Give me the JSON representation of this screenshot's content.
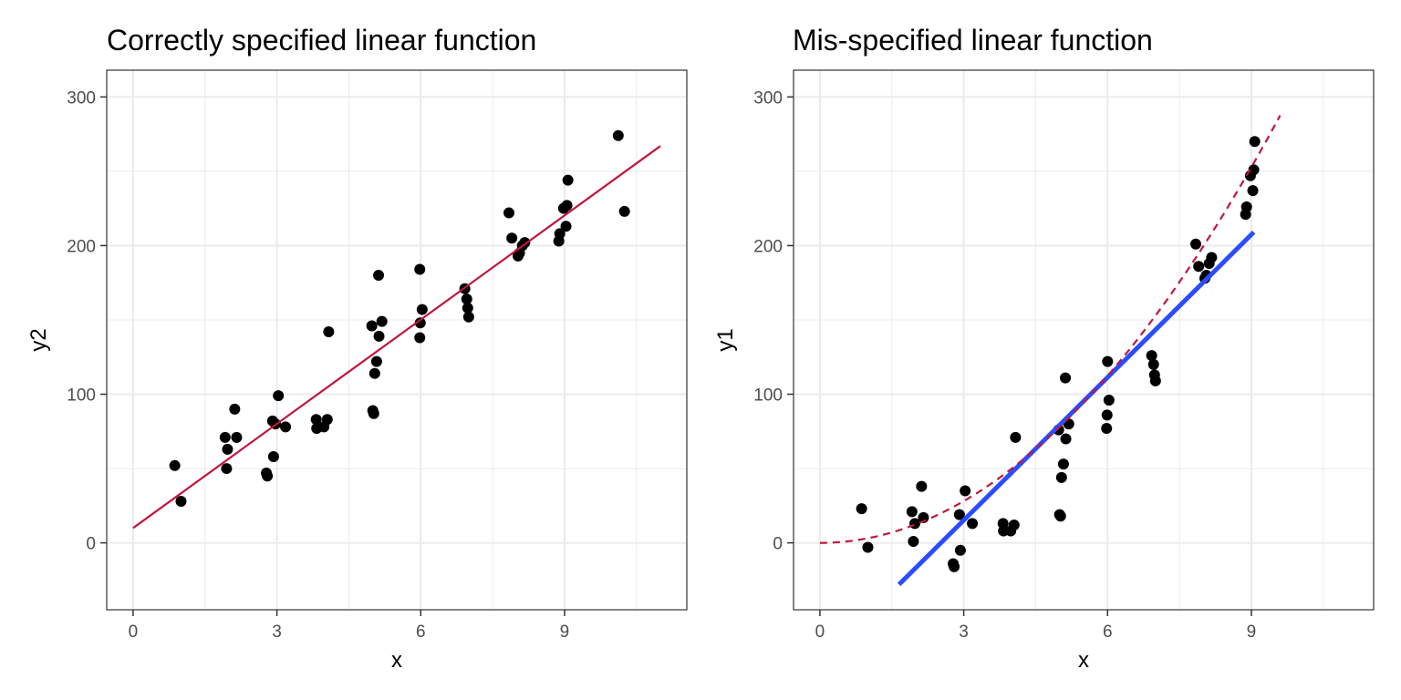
{
  "chart_data": [
    {
      "type": "scatter",
      "title": "Correctly specified linear function",
      "xlabel": "x",
      "ylabel": "y2",
      "xlim": [
        -0.55,
        11.55
      ],
      "ylim": [
        -45,
        318
      ],
      "x_ticks": [
        0,
        3,
        6,
        9
      ],
      "x_tick_labels": [
        "0",
        "3",
        "6",
        "9"
      ],
      "y_ticks": [
        0,
        100,
        200,
        300
      ],
      "y_tick_labels": [
        "0",
        "100",
        "200",
        "300"
      ],
      "grid": true,
      "series": [
        {
          "kind": "points",
          "color": "#000000",
          "points": [
            [
              0.87,
              52
            ],
            [
              1.0,
              28
            ],
            [
              1.92,
              71
            ],
            [
              1.97,
              63
            ],
            [
              1.95,
              50
            ],
            [
              2.12,
              90
            ],
            [
              2.16,
              71
            ],
            [
              2.78,
              47
            ],
            [
              2.8,
              45
            ],
            [
              2.91,
              82
            ],
            [
              2.93,
              58
            ],
            [
              2.97,
              80
            ],
            [
              3.03,
              99
            ],
            [
              3.18,
              78
            ],
            [
              3.82,
              83
            ],
            [
              3.83,
              77
            ],
            [
              3.98,
              78
            ],
            [
              4.05,
              83
            ],
            [
              4.08,
              142
            ],
            [
              4.98,
              146
            ],
            [
              5.0,
              89
            ],
            [
              5.02,
              87
            ],
            [
              5.04,
              114
            ],
            [
              5.08,
              122
            ],
            [
              5.12,
              180
            ],
            [
              5.13,
              139
            ],
            [
              5.19,
              149
            ],
            [
              5.98,
              184
            ],
            [
              5.98,
              138
            ],
            [
              5.99,
              148
            ],
            [
              6.03,
              157
            ],
            [
              6.92,
              171
            ],
            [
              6.96,
              164
            ],
            [
              6.98,
              158
            ],
            [
              7.0,
              152
            ],
            [
              7.84,
              222
            ],
            [
              7.9,
              205
            ],
            [
              8.03,
              193
            ],
            [
              8.06,
              195
            ],
            [
              8.12,
              200
            ],
            [
              8.17,
              202
            ],
            [
              8.88,
              203
            ],
            [
              8.9,
              208
            ],
            [
              8.98,
              225
            ],
            [
              9.03,
              213
            ],
            [
              9.05,
              227
            ],
            [
              9.07,
              244
            ],
            [
              10.12,
              274
            ],
            [
              10.25,
              223
            ]
          ]
        },
        {
          "kind": "line",
          "color": "#c0163f",
          "x": [
            0,
            11
          ],
          "y": [
            10,
            267
          ]
        }
      ]
    },
    {
      "type": "scatter",
      "title": "Mis-specified linear function",
      "xlabel": "x",
      "ylabel": "y1",
      "xlim": [
        -0.55,
        11.55
      ],
      "ylim": [
        -45,
        318
      ],
      "x_ticks": [
        0,
        3,
        6,
        9
      ],
      "x_tick_labels": [
        "0",
        "3",
        "6",
        "9"
      ],
      "y_ticks": [
        0,
        100,
        200,
        300
      ],
      "y_tick_labels": [
        "0",
        "100",
        "200",
        "300"
      ],
      "grid": true,
      "series": [
        {
          "kind": "points",
          "color": "#000000",
          "points": [
            [
              0.87,
              23
            ],
            [
              1.0,
              -3
            ],
            [
              1.92,
              21
            ],
            [
              1.95,
              1
            ],
            [
              1.98,
              13
            ],
            [
              2.12,
              38
            ],
            [
              2.16,
              17
            ],
            [
              2.78,
              -14
            ],
            [
              2.8,
              -16
            ],
            [
              2.91,
              19
            ],
            [
              2.93,
              -5
            ],
            [
              3.03,
              35
            ],
            [
              3.18,
              13
            ],
            [
              3.82,
              13
            ],
            [
              3.83,
              8
            ],
            [
              3.98,
              8
            ],
            [
              4.05,
              12
            ],
            [
              4.08,
              71
            ],
            [
              4.98,
              76
            ],
            [
              5.0,
              19
            ],
            [
              5.02,
              18
            ],
            [
              5.04,
              44
            ],
            [
              5.08,
              53
            ],
            [
              5.12,
              111
            ],
            [
              5.13,
              70
            ],
            [
              5.19,
              80
            ],
            [
              5.98,
              77
            ],
            [
              5.99,
              86
            ],
            [
              6.0,
              122
            ],
            [
              6.03,
              96
            ],
            [
              6.92,
              126
            ],
            [
              6.96,
              120
            ],
            [
              6.98,
              113
            ],
            [
              7.0,
              109
            ],
            [
              7.84,
              201
            ],
            [
              7.9,
              186
            ],
            [
              8.03,
              178
            ],
            [
              8.06,
              180
            ],
            [
              8.12,
              188
            ],
            [
              8.17,
              192
            ],
            [
              8.88,
              221
            ],
            [
              8.9,
              226
            ],
            [
              8.98,
              247
            ],
            [
              9.03,
              237
            ],
            [
              9.05,
              251
            ],
            [
              9.07,
              270
            ]
          ]
        },
        {
          "kind": "line",
          "color": "#2b4cff",
          "x": [
            1.65,
            9.05
          ],
          "y": [
            -28,
            209
          ]
        },
        {
          "kind": "curve",
          "style": "dashed",
          "color": "#c0163f",
          "formula": "y = 3.12 * x^2",
          "x_range": [
            0,
            9.6
          ]
        }
      ]
    }
  ]
}
